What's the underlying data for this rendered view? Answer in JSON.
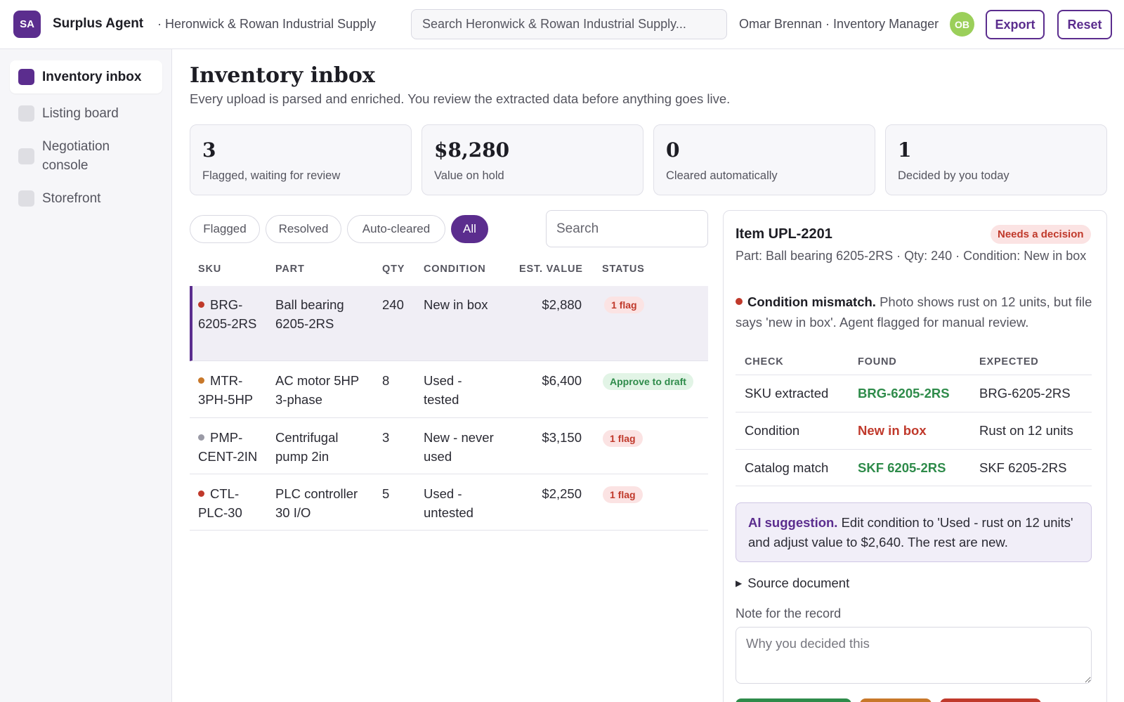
{
  "header": {
    "logo_initials": "SA",
    "app_title": "Surplus Agent",
    "org_name": "· Heronwick & Rowan Industrial Supply",
    "search_placeholder": "Search Heronwick & Rowan Industrial Supply...",
    "user_label": "Omar Brennan · Inventory Manager",
    "avatar_initials": "OB",
    "export_label": "Export",
    "reset_label": "Reset"
  },
  "sidebar": {
    "items": [
      {
        "label": "Inventory inbox",
        "active": true
      },
      {
        "label": "Listing board",
        "active": false
      },
      {
        "label": "Negotiation console",
        "active": false
      },
      {
        "label": "Storefront",
        "active": false
      }
    ]
  },
  "main": {
    "title": "Inventory inbox",
    "subtitle": "Every upload is parsed and enriched. You review the extracted data before anything goes live.",
    "stats": [
      {
        "value": "3",
        "label": "Flagged, waiting for review"
      },
      {
        "value": "$8,280",
        "label": "Value on hold"
      },
      {
        "value": "0",
        "label": "Cleared automatically"
      },
      {
        "value": "1",
        "label": "Decided by you today"
      }
    ],
    "filters": [
      "Flagged",
      "Resolved",
      "Auto-cleared",
      "All"
    ],
    "active_filter": "All",
    "table_search_placeholder": "Search",
    "columns": [
      "SKU",
      "PART",
      "QTY",
      "CONDITION",
      "EST. VALUE",
      "STATUS"
    ],
    "rows": [
      {
        "sku": "BRG-6205-2RS",
        "part": "Ball bearing 6205-2RS",
        "qty": "240",
        "condition": "New in box",
        "value": "$2,880",
        "status": "1 flag",
        "dot_color": "#c0392b"
      },
      {
        "sku": "MTR-3PH-5HP",
        "part": "AC motor 5HP 3-phase",
        "qty": "8",
        "condition": "Used - tested",
        "value": "$6,400",
        "status": "Approve to draft",
        "dot_color": "#c8782a"
      },
      {
        "sku": "PMP-CENT-2IN",
        "part": "Centrifugal pump 2in",
        "qty": "3",
        "condition": "New - never used",
        "value": "$3,150",
        "status": "1 flag",
        "dot_color": "#9a9aa6"
      },
      {
        "sku": "CTL-PLC-30",
        "part": "PLC controller 30 I/O",
        "qty": "5",
        "condition": "Used - untested",
        "value": "$2,250",
        "status": "1 flag",
        "dot_color": "#c0392b"
      }
    ]
  },
  "detail": {
    "title": "Item UPL-2201",
    "badge": "Needs a decision",
    "meta": "Part: Ball bearing 6205-2RS · Qty: 240 · Condition: New in box",
    "issue_title": "Condition mismatch.",
    "issue_text": " Photo shows rust on 12 units, but file says 'new in box'. Agent flagged for manual review.",
    "check_columns": [
      "CHECK",
      "FOUND",
      "EXPECTED"
    ],
    "checks": [
      {
        "check": "SKU extracted",
        "found": "BRG-6205-2RS",
        "expected": "BRG-6205-2RS",
        "ok": true
      },
      {
        "check": "Condition",
        "found": "New in box",
        "expected": "Rust on 12 units",
        "ok": false
      },
      {
        "check": "Catalog match",
        "found": "SKF 6205-2RS",
        "expected": "SKF 6205-2RS",
        "ok": true
      }
    ],
    "ai_label": "AI suggestion.",
    "ai_text": " Edit condition to 'Used - rust on 12 units' and adjust value to $2,640. The rest are new.",
    "source_label": "Source document",
    "note_label": "Note for the record",
    "note_placeholder": "Why you decided this",
    "action_colors": [
      "#2e8b4a",
      "#c8782a",
      "#c0392b"
    ]
  }
}
